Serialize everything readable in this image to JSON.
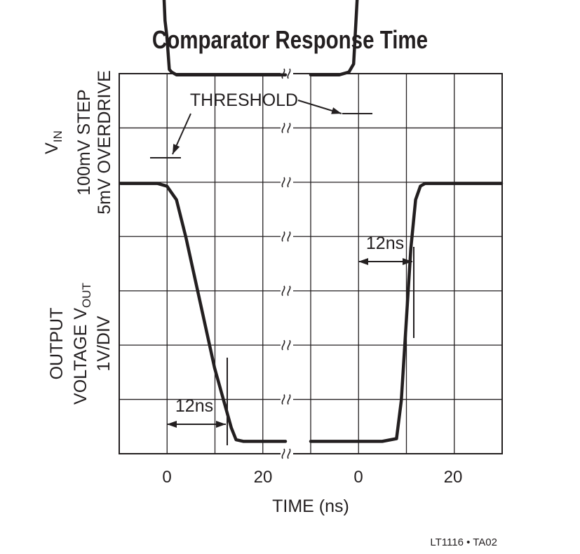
{
  "chart_data": {
    "type": "line",
    "title": "Comparator Response Time",
    "xlabel": "TIME (ns)",
    "x_ticks": [
      "0",
      "20",
      "0",
      "20"
    ],
    "footer": "LT1116 • TA02",
    "annotations": {
      "threshold": "THRESHOLD",
      "delay_fall": "12ns",
      "delay_rise": "12ns"
    },
    "top_axis_label": {
      "line1_main": "V",
      "line1_sub": "IN",
      "line2": "100mV STEP",
      "line3": "5mV OVERDRIVE"
    },
    "bottom_axis_label": {
      "line1": "OUTPUT",
      "line2_main": "VOLTAGE V",
      "line2_sub": "OUT",
      "line3": "1V/DIV"
    },
    "grid": true,
    "x_break": "//",
    "series": [
      {
        "panel": "left",
        "trace": "input",
        "x": [
          -10,
          -4,
          -1.5,
          -0.8,
          -0.4,
          0,
          0.5,
          1,
          2,
          4,
          10,
          20,
          25
        ],
        "y": [
          5.9,
          5.85,
          5.5,
          4.8,
          4.0,
          3.7,
          3.1,
          3.05,
          3.0,
          3.0,
          3.0,
          3.0,
          3.0
        ]
      },
      {
        "panel": "left",
        "trace": "output",
        "x": [
          -10,
          -2,
          0,
          2,
          4,
          7,
          10,
          13.5,
          14.5,
          16,
          20,
          25
        ],
        "y": [
          1.0,
          1.0,
          0.95,
          0.7,
          0.0,
          -1.2,
          -2.4,
          -3.5,
          -3.72,
          -3.75,
          -3.75,
          -3.75
        ]
      },
      {
        "panel": "right",
        "trace": "input",
        "x": [
          -10,
          -4,
          -2,
          -1,
          -0.5,
          0,
          0.5,
          1,
          2,
          5,
          10,
          20,
          30
        ],
        "y": [
          3.0,
          3.0,
          3.05,
          3.2,
          4.0,
          4.8,
          5.5,
          5.72,
          5.77,
          5.8,
          5.8,
          5.8,
          5.8
        ]
      },
      {
        "panel": "right",
        "trace": "output",
        "x": [
          -10,
          0,
          5,
          8,
          9,
          10,
          11,
          12,
          13,
          14,
          15,
          20,
          30
        ],
        "y": [
          -3.75,
          -3.75,
          -3.75,
          -3.7,
          -3.0,
          -1.6,
          -0.2,
          0.7,
          0.95,
          1.0,
          1.0,
          1.0,
          1.0
        ]
      }
    ]
  }
}
